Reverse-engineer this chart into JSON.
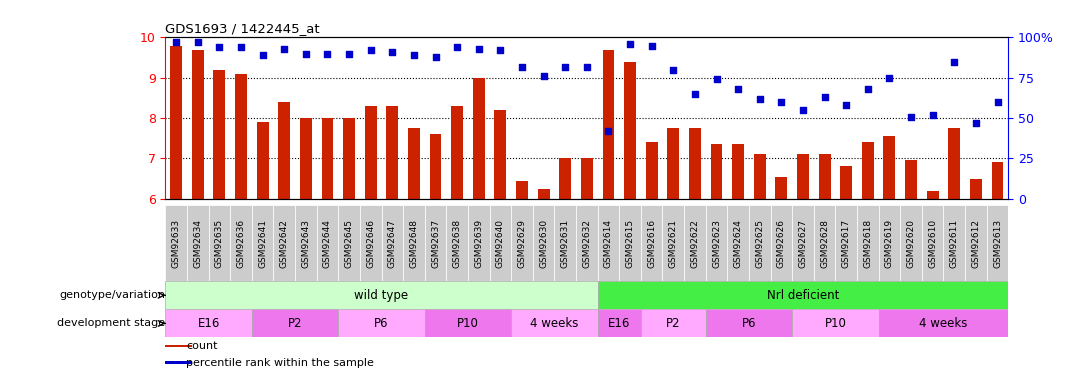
{
  "title": "GDS1693 / 1422445_at",
  "samples": [
    "GSM92633",
    "GSM92634",
    "GSM92635",
    "GSM92636",
    "GSM92641",
    "GSM92642",
    "GSM92643",
    "GSM92644",
    "GSM92645",
    "GSM92646",
    "GSM92647",
    "GSM92648",
    "GSM92637",
    "GSM92638",
    "GSM92639",
    "GSM92640",
    "GSM92629",
    "GSM92630",
    "GSM92631",
    "GSM92632",
    "GSM92614",
    "GSM92615",
    "GSM92616",
    "GSM92621",
    "GSM92622",
    "GSM92623",
    "GSM92624",
    "GSM92625",
    "GSM92626",
    "GSM92627",
    "GSM92628",
    "GSM92617",
    "GSM92618",
    "GSM92619",
    "GSM92620",
    "GSM92610",
    "GSM92611",
    "GSM92612",
    "GSM92613"
  ],
  "bar_values": [
    9.8,
    9.7,
    9.2,
    9.1,
    7.9,
    8.4,
    8.0,
    8.0,
    8.0,
    8.3,
    8.3,
    7.75,
    7.6,
    8.3,
    9.0,
    8.2,
    6.45,
    6.25,
    7.0,
    7.0,
    9.7,
    9.4,
    7.4,
    7.75,
    7.75,
    7.35,
    7.35,
    7.1,
    6.55,
    7.1,
    7.1,
    6.8,
    7.4,
    7.55,
    6.95,
    6.2,
    7.75,
    6.5,
    6.9
  ],
  "percentile_values": [
    97,
    97,
    94,
    94,
    89,
    93,
    90,
    90,
    90,
    92,
    91,
    89,
    88,
    94,
    93,
    92,
    82,
    76,
    82,
    82,
    42,
    96,
    95,
    80,
    65,
    74,
    68,
    62,
    60,
    55,
    63,
    58,
    68,
    75,
    51,
    52,
    85,
    47,
    60
  ],
  "bar_color": "#cc2200",
  "dot_color": "#0000cc",
  "ylim_left": [
    6,
    10
  ],
  "ylim_right": [
    0,
    100
  ],
  "yticks_left": [
    6,
    7,
    8,
    9,
    10
  ],
  "yticks_right": [
    0,
    25,
    50,
    75,
    100
  ],
  "yticklabels_right": [
    "0",
    "25",
    "50",
    "75",
    "100%"
  ],
  "genotype_groups": [
    {
      "label": "wild type",
      "start": 0,
      "end": 20,
      "color": "#ccffcc"
    },
    {
      "label": "Nrl deficient",
      "start": 20,
      "end": 39,
      "color": "#44ee44"
    }
  ],
  "stage_groups": [
    {
      "label": "E16",
      "start": 0,
      "end": 4,
      "color": "#ffaaff"
    },
    {
      "label": "P2",
      "start": 4,
      "end": 8,
      "color": "#ee77ee"
    },
    {
      "label": "P6",
      "start": 8,
      "end": 12,
      "color": "#ffaaff"
    },
    {
      "label": "P10",
      "start": 12,
      "end": 16,
      "color": "#ee77ee"
    },
    {
      "label": "4 weeks",
      "start": 16,
      "end": 20,
      "color": "#ffaaff"
    },
    {
      "label": "E16",
      "start": 20,
      "end": 22,
      "color": "#ee77ee"
    },
    {
      "label": "P2",
      "start": 22,
      "end": 25,
      "color": "#ffaaff"
    },
    {
      "label": "P6",
      "start": 25,
      "end": 29,
      "color": "#ee77ee"
    },
    {
      "label": "P10",
      "start": 29,
      "end": 33,
      "color": "#ffaaff"
    },
    {
      "label": "4 weeks",
      "start": 33,
      "end": 39,
      "color": "#ee77ee"
    }
  ],
  "legend_items": [
    {
      "label": "count",
      "color": "#cc2200"
    },
    {
      "label": "percentile rank within the sample",
      "color": "#0000cc"
    }
  ],
  "grid_lines": [
    7,
    8,
    9
  ],
  "xtick_bg": "#cccccc"
}
